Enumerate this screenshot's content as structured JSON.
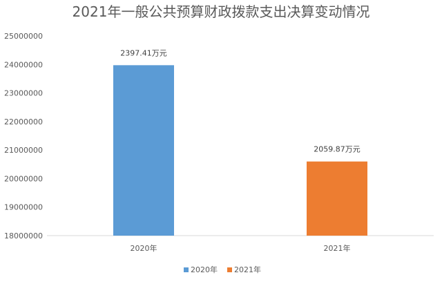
{
  "chart_data": {
    "type": "bar",
    "title": "2021年一般公共预算财政拨款支出决算变动情况",
    "xlabel": "",
    "ylabel": "",
    "categories": [
      "2020年",
      "2021年"
    ],
    "series": [
      {
        "name": "2020年",
        "color": "#5b9bd5",
        "values": [
          23974100,
          null
        ],
        "labels": [
          "2397.41万元",
          ""
        ]
      },
      {
        "name": "2021年",
        "color": "#ed7d31",
        "values": [
          null,
          20598700
        ],
        "labels": [
          "",
          "2059.87万元"
        ]
      }
    ],
    "ylim": [
      18000000,
      25000000
    ],
    "yticks": [
      18000000,
      19000000,
      20000000,
      21000000,
      22000000,
      23000000,
      24000000,
      25000000
    ],
    "grid": false,
    "legend": "bottom"
  }
}
